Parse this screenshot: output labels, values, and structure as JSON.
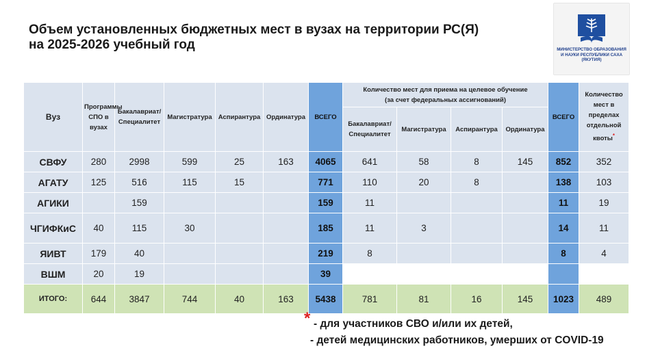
{
  "title": {
    "line1": "Объем установленных бюджетных мест в вузах на территории РС(Я)",
    "line2": "на 2025-2026 учебный год"
  },
  "logo": {
    "icon": "book-emblem-icon",
    "text": "МИНИСТЕРСТВО ОБРАЗОВАНИЯ И НАУКИ РЕСПУБЛИКИ САХА (ЯКУТИЯ)",
    "color": "#1f3f8c"
  },
  "colors": {
    "highlight_blue": "#6fa3dc",
    "total_row_green": "#cfe3b5",
    "cell_bg": "#dbe3ee",
    "asterisk": "#dd2222"
  },
  "table": {
    "headers": {
      "vuz": "Вуз",
      "spo": "Программы СПО в вузах",
      "bakalavriat": "Бакалавриат/ Специалитет",
      "magistratura": "Магистратура",
      "aspirantura": "Аспирантура",
      "ordinatura": "Ординатура",
      "vsego": "ВСЕГО",
      "target_group": "Количество мест для приема на целевое обучение",
      "target_group_note": "(за счет федеральных ассигнований)",
      "t_bakalavriat": "Бакалавриат/ Специалитет",
      "t_magistratura": "Магистратура",
      "t_aspirantura": "Аспирантура",
      "t_ordinatura": "Ординатура",
      "t_vsego": "ВСЕГО",
      "kvota": "Количество мест в пределах отдельной квоты",
      "kvota_mark": "*"
    },
    "rows": [
      {
        "vuz": "СВФУ",
        "spo": "280",
        "bak": "2998",
        "mag": "599",
        "asp": "25",
        "ord": "163",
        "vsego": "4065",
        "t_bak": "641",
        "t_mag": "58",
        "t_asp": "8",
        "t_ord": "145",
        "t_vsego": "852",
        "kvota": "352"
      },
      {
        "vuz": "АГАТУ",
        "spo": "125",
        "bak": "516",
        "mag": "115",
        "asp": "15",
        "ord": "",
        "vsego": "771",
        "t_bak": "110",
        "t_mag": "20",
        "t_asp": "8",
        "t_ord": "",
        "t_vsego": "138",
        "kvota": "103"
      },
      {
        "vuz": "АГИКИ",
        "spo": "",
        "bak": "159",
        "mag": "",
        "asp": "",
        "ord": "",
        "vsego": "159",
        "t_bak": "11",
        "t_mag": "",
        "t_asp": "",
        "t_ord": "",
        "t_vsego": "11",
        "kvota": "19"
      },
      {
        "vuz": "ЧГИФКиС",
        "spo": "40",
        "bak": "115",
        "mag": "30",
        "asp": "",
        "ord": "",
        "vsego": "185",
        "t_bak": "11",
        "t_mag": "3",
        "t_asp": "",
        "t_ord": "",
        "t_vsego": "14",
        "kvota": "11"
      },
      {
        "vuz": "ЯИВТ",
        "spo": "179",
        "bak": "40",
        "mag": "",
        "asp": "",
        "ord": "",
        "vsego": "219",
        "t_bak": "8",
        "t_mag": "",
        "t_asp": "",
        "t_ord": "",
        "t_vsego": "8",
        "kvota": "4"
      },
      {
        "vuz": "ВШМ",
        "spo": "20",
        "bak": "19",
        "mag": "",
        "asp": "",
        "ord": "",
        "vsego": "39",
        "t_bak": "",
        "t_mag": "",
        "t_asp": "",
        "t_ord": "",
        "t_vsego": "",
        "kvota": ""
      }
    ],
    "total": {
      "vuz": "ИТОГО:",
      "spo": "644",
      "bak": "3847",
      "mag": "744",
      "asp": "40",
      "ord": "163",
      "vsego": "5438",
      "t_bak": "781",
      "t_mag": "81",
      "t_asp": "16",
      "t_ord": "145",
      "t_vsego": "1023",
      "kvota": "489"
    }
  },
  "footnote": {
    "mark": "*",
    "line1": "- для участников СВО и/или их детей,",
    "line2": "- детей медицинских работников, умерших от COVID-19"
  }
}
